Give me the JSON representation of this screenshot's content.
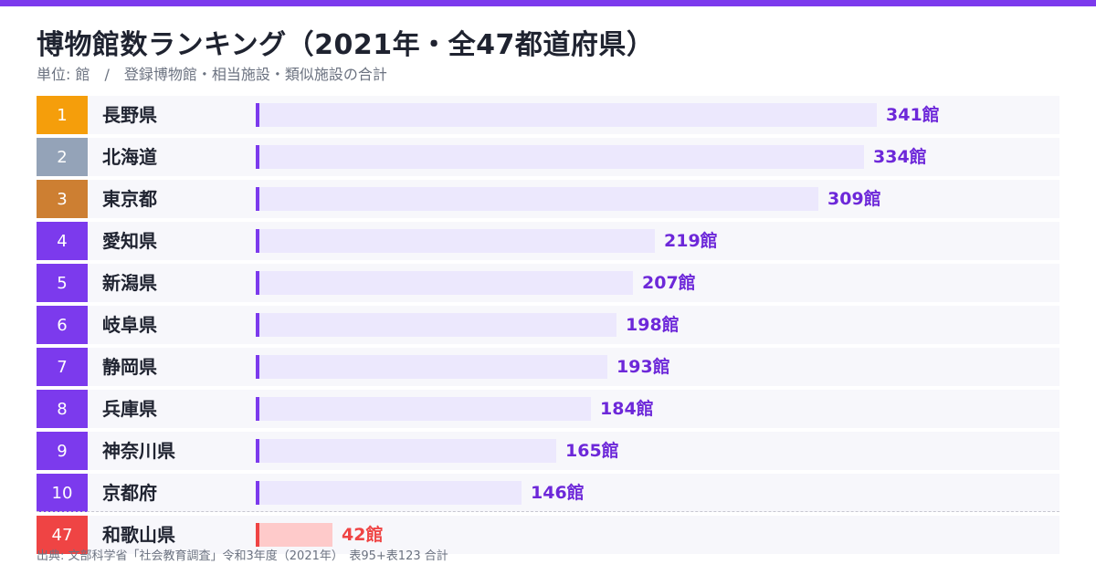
{
  "colors": {
    "accent": "#7c3aed",
    "rank1": "#f59e0b",
    "rank2": "#94a3b8",
    "rank3": "#cd7f32",
    "rankDefault": "#7c3aed",
    "rankLow": "#ef4444"
  },
  "header": {
    "title": "博物館数ランキング（2021年・全47都道府県）",
    "subtitle": "単位: 館　/　登録博物館・相当施設・類似施設の合計"
  },
  "chart_data": {
    "type": "bar",
    "orientation": "horizontal",
    "unit": "館",
    "xlim": [
      0,
      341
    ],
    "grid": false,
    "legend": "none",
    "items": [
      {
        "rank": "1",
        "name": "長野県",
        "value": 341,
        "label": "341館",
        "rank_color": "#f59e0b",
        "highlight": false
      },
      {
        "rank": "2",
        "name": "北海道",
        "value": 334,
        "label": "334館",
        "rank_color": "#94a3b8",
        "highlight": false
      },
      {
        "rank": "3",
        "name": "東京都",
        "value": 309,
        "label": "309館",
        "rank_color": "#cd7f32",
        "highlight": false
      },
      {
        "rank": "4",
        "name": "愛知県",
        "value": 219,
        "label": "219館",
        "rank_color": "#7c3aed",
        "highlight": false
      },
      {
        "rank": "5",
        "name": "新潟県",
        "value": 207,
        "label": "207館",
        "rank_color": "#7c3aed",
        "highlight": false
      },
      {
        "rank": "6",
        "name": "岐阜県",
        "value": 198,
        "label": "198館",
        "rank_color": "#7c3aed",
        "highlight": false
      },
      {
        "rank": "7",
        "name": "静岡県",
        "value": 193,
        "label": "193館",
        "rank_color": "#7c3aed",
        "highlight": false
      },
      {
        "rank": "8",
        "name": "兵庫県",
        "value": 184,
        "label": "184館",
        "rank_color": "#7c3aed",
        "highlight": false
      },
      {
        "rank": "9",
        "name": "神奈川県",
        "value": 165,
        "label": "165館",
        "rank_color": "#7c3aed",
        "highlight": false
      },
      {
        "rank": "10",
        "name": "京都府",
        "value": 146,
        "label": "146館",
        "rank_color": "#7c3aed",
        "highlight": false
      },
      {
        "rank": "47",
        "name": "和歌山県",
        "value": 42,
        "label": "42館",
        "rank_color": "#ef4444",
        "highlight": true
      }
    ]
  },
  "footer": {
    "source": "出典: 文部科学省「社会教育調査」令和3年度（2021年）　表95+表123 合計"
  }
}
